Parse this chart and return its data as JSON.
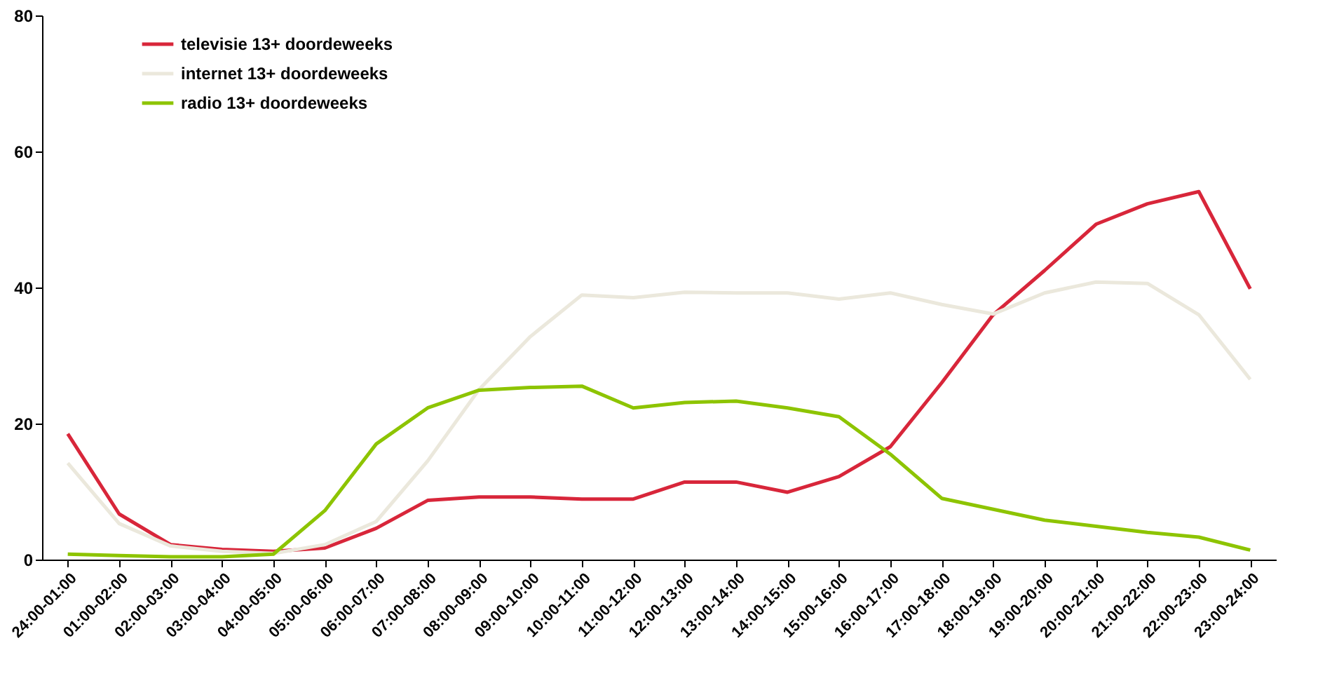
{
  "chart_data": {
    "type": "line",
    "categories": [
      "24:00-01:00",
      "01:00-02:00",
      "02:00-03:00",
      "03:00-04:00",
      "04:00-05:00",
      "05:00-06:00",
      "06:00-07:00",
      "07:00-08:00",
      "08:00-09:00",
      "09:00-10:00",
      "10:00-11:00",
      "11:00-12:00",
      "12:00-13:00",
      "13:00-14:00",
      "14:00-15:00",
      "15:00-16:00",
      "16:00-17:00",
      "17:00-18:00",
      "18:00-19:00",
      "19:00-20:00",
      "20:00-21:00",
      "21:00-22:00",
      "22:00-23:00",
      "23:00-24:00"
    ],
    "series": [
      {
        "name": "televisie 13+ doordeweeks",
        "color": "#d8263a",
        "values": [
          18.5,
          6.7,
          2.2,
          1.5,
          1.2,
          1.7,
          4.6,
          8.7,
          9.2,
          9.2,
          8.9,
          8.9,
          11.4,
          11.4,
          9.9,
          12.2,
          16.6,
          26,
          36,
          42.5,
          49.3,
          52.3,
          54.1,
          39.8
        ]
      },
      {
        "name": "internet 13+ doordeweeks",
        "color": "#ebe8dc",
        "values": [
          14.2,
          5.3,
          2,
          1.2,
          0.9,
          2.2,
          5.6,
          14.5,
          25,
          32.8,
          38.9,
          38.5,
          39.3,
          39.2,
          39.2,
          38.3,
          39.2,
          37.5,
          36.1,
          39.2,
          40.8,
          40.6,
          36,
          26.5
        ]
      },
      {
        "name": "radio 13+ doordeweeks",
        "color": "#8dc400",
        "values": [
          0.8,
          0.6,
          0.4,
          0.4,
          0.8,
          7.2,
          17,
          22.3,
          24.9,
          25.3,
          25.5,
          22.3,
          23.1,
          23.3,
          22.3,
          21,
          15.5,
          9,
          7.4,
          5.8,
          4.9,
          4,
          3.3,
          1.4
        ]
      }
    ],
    "ylim": [
      0,
      80
    ],
    "yticks": [
      0,
      20,
      40,
      60,
      80
    ],
    "grid": false,
    "legend": "top left",
    "marker": "none",
    "line_style": "solid"
  }
}
